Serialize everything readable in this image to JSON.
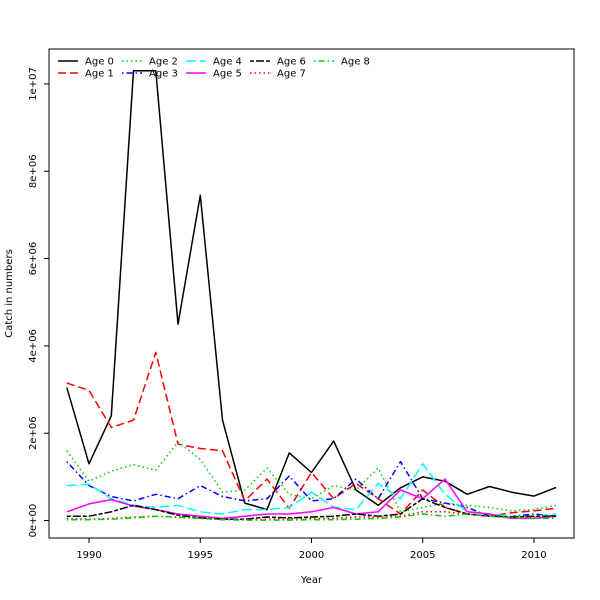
{
  "chart_data": {
    "type": "line",
    "title": "",
    "xlabel": "Year",
    "ylabel": "Catch in numbers",
    "xlim": [
      1988.2,
      2011.8
    ],
    "ylim": [
      -400000,
      10800000
    ],
    "x_ticks": [
      1990,
      1995,
      2000,
      2005,
      2010
    ],
    "y_ticks": [
      0,
      2000000,
      4000000,
      6000000,
      8000000,
      10000000
    ],
    "y_tick_labels": [
      "0e+00",
      "2e+06",
      "4e+06",
      "6e+06",
      "8e+06",
      "1e+07"
    ],
    "grid": false,
    "legend_position": "top-left",
    "x": [
      1989,
      1990,
      1991,
      1992,
      1993,
      1994,
      1995,
      1996,
      1997,
      1998,
      1999,
      2000,
      2001,
      2002,
      2003,
      2004,
      2005,
      2006,
      2007,
      2008,
      2009,
      2010,
      2011
    ],
    "series": [
      {
        "name": "Age 0",
        "color": "#000000",
        "dash": "solid",
        "values": [
          3050000,
          1300000,
          2400000,
          10300000,
          10300000,
          4500000,
          7450000,
          2300000,
          400000,
          250000,
          1550000,
          1100000,
          1820000,
          700000,
          350000,
          750000,
          1000000,
          900000,
          600000,
          780000,
          650000,
          560000,
          760000
        ]
      },
      {
        "name": "Age 1",
        "color": "#ff0000",
        "dash": "long",
        "values": [
          3150000,
          2980000,
          2130000,
          2300000,
          3850000,
          1750000,
          1650000,
          1600000,
          450000,
          950000,
          280000,
          1100000,
          500000,
          850000,
          500000,
          150000,
          700000,
          300000,
          150000,
          100000,
          180000,
          220000,
          280000
        ]
      },
      {
        "name": "Age 2",
        "color": "#00cd00",
        "dash": "dot",
        "values": [
          1600000,
          900000,
          1130000,
          1280000,
          1150000,
          1800000,
          1400000,
          650000,
          700000,
          1200000,
          600000,
          500000,
          800000,
          700000,
          1200000,
          200000,
          300000,
          400000,
          350000,
          300000,
          220000,
          250000,
          350000
        ]
      },
      {
        "name": "Age 3",
        "color": "#0000ff",
        "dash": "dotdash",
        "values": [
          1350000,
          800000,
          550000,
          450000,
          600000,
          500000,
          800000,
          550000,
          450000,
          500000,
          1020000,
          450000,
          500000,
          950000,
          500000,
          1350000,
          500000,
          400000,
          300000,
          100000,
          100000,
          150000,
          100000
        ]
      },
      {
        "name": "Age 4",
        "color": "#00ffff",
        "dash": "longdash",
        "values": [
          800000,
          830000,
          500000,
          350000,
          300000,
          350000,
          200000,
          150000,
          250000,
          250000,
          300000,
          650000,
          300000,
          250000,
          850000,
          500000,
          1300000,
          600000,
          200000,
          150000,
          100000,
          100000,
          150000
        ]
      },
      {
        "name": "Age 5",
        "color": "#ff00ff",
        "dash": "solid",
        "values": [
          200000,
          380000,
          480000,
          330000,
          250000,
          150000,
          100000,
          50000,
          100000,
          150000,
          150000,
          200000,
          300000,
          150000,
          200000,
          700000,
          500000,
          950000,
          200000,
          150000,
          50000,
          50000,
          100000
        ]
      },
      {
        "name": "Age 6",
        "color": "#000000",
        "dash": "twodash",
        "values": [
          100000,
          100000,
          200000,
          350000,
          250000,
          120000,
          60000,
          30000,
          30000,
          80000,
          60000,
          80000,
          100000,
          150000,
          100000,
          150000,
          500000,
          300000,
          150000,
          100000,
          80000,
          100000,
          100000
        ]
      },
      {
        "name": "Age 7",
        "color": "#ff0000",
        "dash": "dot",
        "values": [
          50000,
          30000,
          50000,
          80000,
          100000,
          70000,
          50000,
          20000,
          20000,
          30000,
          40000,
          50000,
          50000,
          80000,
          80000,
          100000,
          200000,
          200000,
          150000,
          100000,
          80000,
          80000,
          80000
        ]
      },
      {
        "name": "Age 8",
        "color": "#00cd00",
        "dash": "dotdash",
        "values": [
          20000,
          20000,
          30000,
          60000,
          100000,
          80000,
          50000,
          20000,
          10000,
          10000,
          10000,
          20000,
          20000,
          30000,
          50000,
          80000,
          150000,
          100000,
          150000,
          100000,
          60000,
          50000,
          50000
        ]
      }
    ]
  }
}
